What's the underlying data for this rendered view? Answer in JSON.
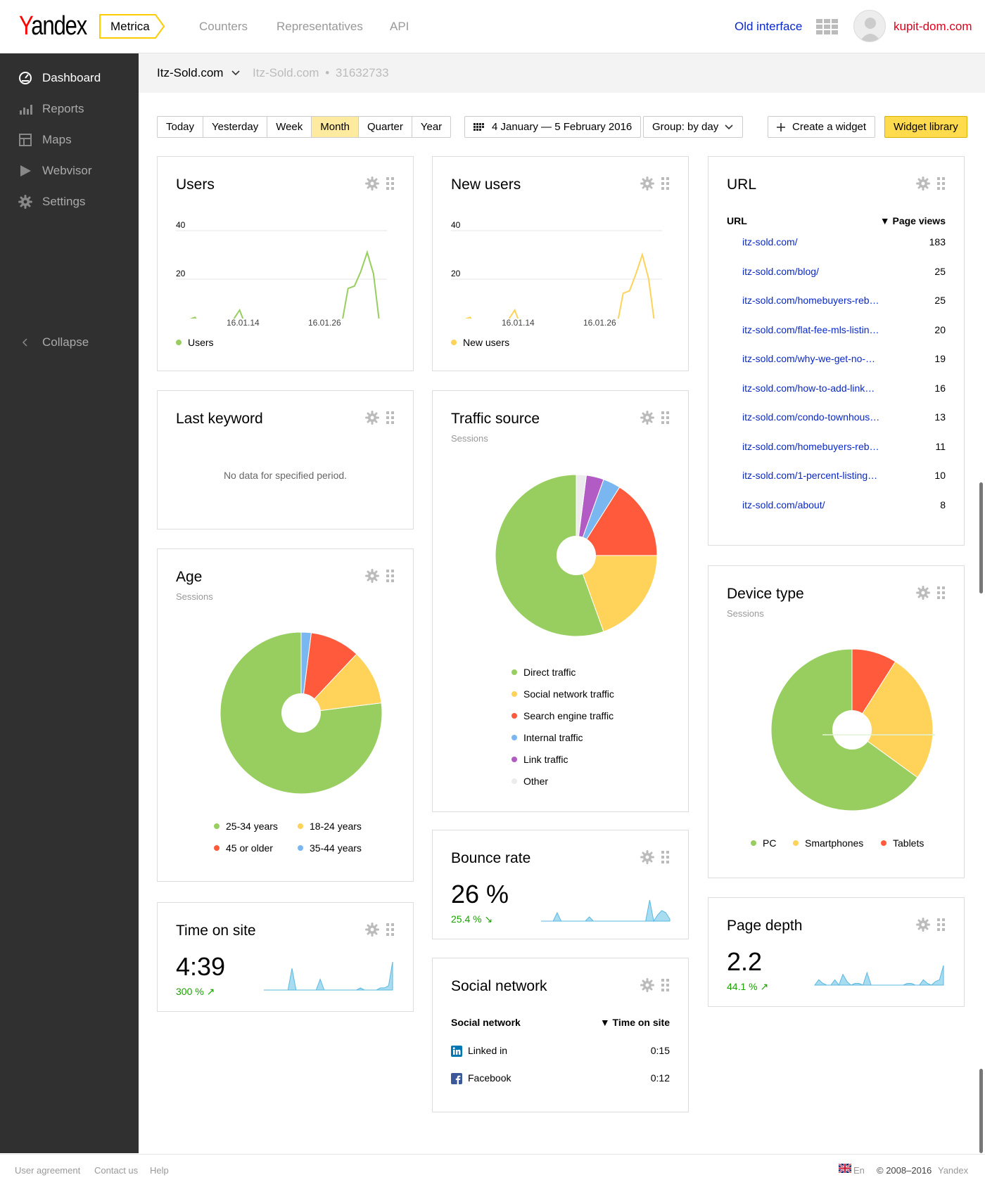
{
  "header": {
    "logo": "Yandex",
    "product": "Metrica",
    "nav": [
      "Counters",
      "Representatives",
      "API"
    ],
    "old_interface": "Old interface",
    "account": "kupit-dom.com",
    "icons": {
      "apps": "apps-grid-icon",
      "avatar": "user-avatar-icon"
    }
  },
  "sidebar": {
    "items": [
      {
        "label": "Dashboard",
        "icon": "dashboard-icon",
        "active": true
      },
      {
        "label": "Reports",
        "icon": "bar-chart-icon",
        "active": false
      },
      {
        "label": "Maps",
        "icon": "map-icon",
        "active": false
      },
      {
        "label": "Webvisor",
        "icon": "play-icon",
        "active": false
      },
      {
        "label": "Settings",
        "icon": "gear-icon",
        "active": false
      }
    ],
    "collapse": "Collapse"
  },
  "counter": {
    "name": "Itz-Sold.com",
    "site": "Itz-Sold.com",
    "separator": "•",
    "id": "31632733"
  },
  "toolbar": {
    "periods": [
      "Today",
      "Yesterday",
      "Week",
      "Month",
      "Quarter",
      "Year"
    ],
    "selected_period": "Month",
    "date_range": "4 January — 5 February 2016",
    "group": "Group: by day",
    "create_widget": "Create a widget",
    "widget_library": "Widget library"
  },
  "colors": {
    "accent": "#ffdb4d",
    "green": "#98ce5f",
    "yellow": "#ffd25a",
    "red": "#ff5a3c",
    "blue": "#7ab6f0",
    "purple": "#b35bc4",
    "grey": "#ececec",
    "spark": "#a8dcf0",
    "link": "#0a28c8"
  },
  "widgets": {
    "users": {
      "title": "Users",
      "legend": "Users",
      "y_ticks": [
        "40",
        "20"
      ],
      "x_ticks": [
        "16.01.14",
        "16.01.26"
      ],
      "chart_data": {
        "type": "line",
        "ylim": [
          0,
          40
        ],
        "series": [
          {
            "name": "Users",
            "values": [
              1,
              0,
              3,
              4,
              0,
              1,
              1,
              2,
              1,
              3,
              7,
              0,
              2,
              0,
              0,
              0,
              0,
              0,
              0,
              0,
              0,
              1,
              2,
              1,
              1,
              0,
              1,
              16,
              17,
              23,
              31,
              22,
              0
            ]
          }
        ]
      }
    },
    "new_users": {
      "title": "New users",
      "legend": "New users",
      "y_ticks": [
        "40",
        "20"
      ],
      "x_ticks": [
        "16.01.14",
        "16.01.26"
      ],
      "chart_data": {
        "type": "line",
        "ylim": [
          0,
          40
        ],
        "series": [
          {
            "name": "New users",
            "values": [
              1,
              0,
              3,
              4,
              0,
              1,
              1,
              2,
              0,
              3,
              7,
              0,
              2,
              0,
              0,
              0,
              0,
              0,
              0,
              0,
              0,
              1,
              2,
              1,
              0,
              0,
              0,
              14,
              15,
              22,
              30,
              20,
              0
            ]
          }
        ]
      }
    },
    "url": {
      "title": "URL",
      "col_label": "URL",
      "col_value": "▼ Page views",
      "rows": [
        {
          "url": "itz-sold.com/",
          "views": "183"
        },
        {
          "url": "itz-sold.com/blog/",
          "views": "25"
        },
        {
          "url": "itz-sold.com/homebuyers-reb…",
          "views": "25"
        },
        {
          "url": "itz-sold.com/flat-fee-mls-listin…",
          "views": "20"
        },
        {
          "url": "itz-sold.com/why-we-get-no-…",
          "views": "19"
        },
        {
          "url": "itz-sold.com/how-to-add-link…",
          "views": "16"
        },
        {
          "url": "itz-sold.com/condo-townhous…",
          "views": "13"
        },
        {
          "url": "itz-sold.com/homebuyers-reb…",
          "views": "11"
        },
        {
          "url": "itz-sold.com/1-percent-listing…",
          "views": "10"
        },
        {
          "url": "itz-sold.com/about/",
          "views": "8"
        }
      ]
    },
    "last_keyword": {
      "title": "Last keyword",
      "empty": "No data for specified period."
    },
    "traffic_source": {
      "title": "Traffic source",
      "subtitle": "Sessions",
      "chart_data": {
        "type": "pie",
        "labels": [
          "Direct traffic",
          "Social network traffic",
          "Search engine traffic",
          "Internal traffic",
          "Link traffic",
          "Other"
        ],
        "values": [
          55.5,
          19.5,
          16,
          3.5,
          3.5,
          2
        ],
        "colors": [
          "#98ce5f",
          "#ffd25a",
          "#ff5a3c",
          "#7ab6f0",
          "#b35bc4",
          "#ececec"
        ]
      }
    },
    "age": {
      "title": "Age",
      "subtitle": "Sessions",
      "chart_data": {
        "type": "pie",
        "labels": [
          "25-34 years",
          "18-24 years",
          "45 or older",
          "35-44 years"
        ],
        "values": [
          77,
          11,
          10,
          2
        ],
        "colors": [
          "#98ce5f",
          "#ffd25a",
          "#ff5a3c",
          "#7ab6f0"
        ]
      }
    },
    "device_type": {
      "title": "Device type",
      "subtitle": "Sessions",
      "chart_data": {
        "type": "pie",
        "labels": [
          "PC",
          "Smartphones",
          "Tablets"
        ],
        "values": [
          65,
          26,
          9
        ],
        "colors": [
          "#98ce5f",
          "#ffd25a",
          "#ff5a3c"
        ]
      }
    },
    "bounce_rate": {
      "title": "Bounce rate",
      "value": "26 %",
      "delta": "25.4 % ↘",
      "chart_data": {
        "type": "area",
        "values": [
          0,
          0,
          0,
          0,
          4,
          0,
          0,
          0,
          0,
          0,
          0,
          0,
          2,
          0,
          0,
          0,
          0,
          0,
          0,
          0,
          0,
          0,
          0,
          0,
          0,
          0,
          0,
          10,
          0,
          3,
          5,
          4,
          1
        ]
      }
    },
    "time_on_site": {
      "title": "Time on site",
      "value": "4:39",
      "delta": "300 % ↗",
      "chart_data": {
        "type": "area",
        "values": [
          0,
          0,
          0,
          0,
          0,
          0,
          0,
          10,
          0,
          0,
          0,
          0,
          0,
          0,
          5,
          0,
          0,
          0,
          0,
          0,
          0,
          0,
          0,
          0,
          1,
          0,
          0,
          0,
          0,
          1,
          1,
          2,
          13
        ]
      }
    },
    "page_depth": {
      "title": "Page depth",
      "value": "2.2",
      "delta": "44.1 % ↗",
      "chart_data": {
        "type": "area",
        "values": [
          0,
          3,
          1,
          0,
          0,
          3,
          0,
          6,
          2,
          0,
          1,
          1,
          0,
          7,
          0,
          0,
          0,
          0,
          0,
          0,
          0,
          0,
          0,
          1,
          1,
          0,
          0,
          3,
          1,
          0,
          2,
          3,
          11
        ]
      }
    },
    "social_network": {
      "title": "Social network",
      "col_label": "Social network",
      "col_value": "▼ Time on site",
      "rows": [
        {
          "name": "Linked in",
          "value": "0:15",
          "icon": "linkedin-icon"
        },
        {
          "name": "Facebook",
          "value": "0:12",
          "icon": "facebook-icon"
        }
      ]
    }
  },
  "footer": {
    "links": [
      "User agreement",
      "Contact us",
      "Help"
    ],
    "lang": "En",
    "lang_icon": "uk-flag-icon",
    "copyright": "© 2008–2016",
    "brand": "Yandex"
  }
}
